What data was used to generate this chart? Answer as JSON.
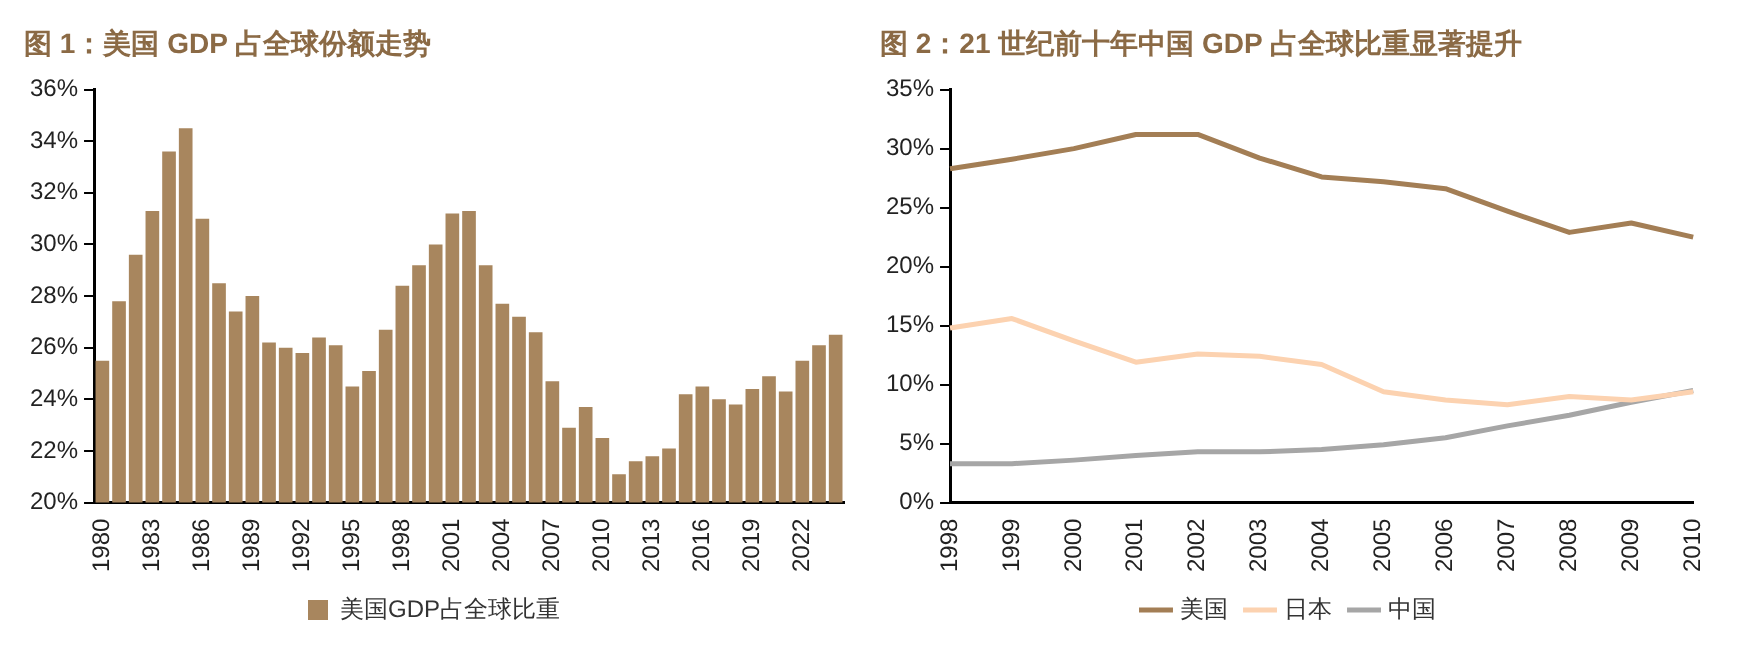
{
  "chart_data": [
    {
      "type": "bar",
      "title": "图 1：美国 GDP 占全球份额走势",
      "categories": [
        "1980",
        null,
        null,
        "1983",
        null,
        null,
        "1986",
        null,
        null,
        "1989",
        null,
        null,
        "1992",
        null,
        null,
        "1995",
        null,
        null,
        "1998",
        null,
        null,
        "2001",
        null,
        null,
        "2004",
        null,
        null,
        "2007",
        null,
        null,
        "2010",
        null,
        null,
        "2013",
        null,
        null,
        "2016",
        null,
        null,
        "2019",
        null,
        null,
        "2022",
        null,
        null
      ],
      "series": [
        {
          "name": "美国GDP占全球比重",
          "color": "#a8865e",
          "values": [
            25.5,
            27.8,
            29.6,
            31.3,
            33.6,
            34.5,
            31.0,
            28.5,
            27.4,
            28.0,
            26.2,
            26.0,
            25.8,
            26.4,
            26.1,
            24.5,
            25.1,
            26.7,
            28.4,
            29.2,
            30.0,
            31.2,
            31.3,
            29.2,
            27.7,
            27.2,
            26.6,
            24.7,
            22.9,
            23.7,
            22.5,
            21.1,
            21.6,
            21.8,
            22.1,
            24.2,
            24.5,
            24.0,
            23.8,
            24.4,
            24.9,
            24.3,
            25.5,
            26.1,
            26.5
          ]
        }
      ],
      "ylim": [
        20,
        36
      ],
      "yticks": [
        {
          "value": 20,
          "label": "20%"
        },
        {
          "value": 22,
          "label": "22%"
        },
        {
          "value": 24,
          "label": "24%"
        },
        {
          "value": 26,
          "label": "26%"
        },
        {
          "value": 28,
          "label": "28%"
        },
        {
          "value": 30,
          "label": "30%"
        },
        {
          "value": 32,
          "label": "32%"
        },
        {
          "value": 34,
          "label": "34%"
        },
        {
          "value": 36,
          "label": "36%"
        }
      ],
      "grid": false,
      "legend": "bottom"
    },
    {
      "type": "line",
      "title": "图 2：21 世纪前十年中国 GDP 占全球比重显著提升",
      "categories": [
        "1998",
        "1999",
        "2000",
        "2001",
        "2002",
        "2003",
        "2004",
        "2005",
        "2006",
        "2007",
        "2008",
        "2009",
        "2010"
      ],
      "series": [
        {
          "name": "美国",
          "color": "#a37e55",
          "values": [
            28.3,
            29.1,
            30.0,
            31.2,
            31.2,
            29.2,
            27.6,
            27.2,
            26.6,
            24.7,
            22.9,
            23.7,
            22.5
          ]
        },
        {
          "name": "日本",
          "color": "#fcd2b0",
          "values": [
            14.8,
            15.6,
            13.7,
            11.9,
            12.6,
            12.4,
            11.7,
            9.4,
            8.7,
            8.3,
            9.0,
            8.7,
            9.4
          ]
        },
        {
          "name": "中国",
          "color": "#a6a6a6",
          "values": [
            3.3,
            3.3,
            3.6,
            4.0,
            4.3,
            4.3,
            4.5,
            4.9,
            5.5,
            6.5,
            7.4,
            8.5,
            9.5
          ]
        }
      ],
      "ylim": [
        0,
        35
      ],
      "yticks": [
        {
          "value": 0,
          "label": "0%"
        },
        {
          "value": 5,
          "label": "5%"
        },
        {
          "value": 10,
          "label": "10%"
        },
        {
          "value": 15,
          "label": "15%"
        },
        {
          "value": 20,
          "label": "20%"
        },
        {
          "value": 25,
          "label": "25%"
        },
        {
          "value": 30,
          "label": "30%"
        },
        {
          "value": 35,
          "label": "35%"
        }
      ],
      "grid": false,
      "legend": "bottom",
      "marker": "none"
    }
  ]
}
